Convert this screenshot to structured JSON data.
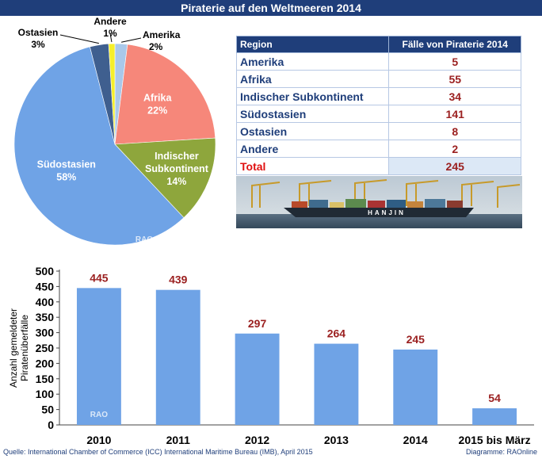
{
  "title": "Piraterie auf den Weltmeeren 2014",
  "pie": {
    "type": "pie",
    "slices": [
      {
        "label": "Amerika",
        "percent": "2%",
        "value": 2,
        "color": "#a9c8ea"
      },
      {
        "label": "Afrika",
        "percent": "22%",
        "value": 22,
        "color": "#f6877a"
      },
      {
        "label": "Indischer Subkontinent",
        "percent": "14%",
        "value": 14,
        "color": "#8ea63c"
      },
      {
        "label": "Südostasien",
        "percent": "58%",
        "value": 58,
        "color": "#6fa3e6"
      },
      {
        "label": "Ostasien",
        "percent": "3%",
        "value": 3,
        "color": "#3f5f8f"
      },
      {
        "label": "Andere",
        "percent": "1%",
        "value": 1,
        "color": "#f5ef2a"
      }
    ],
    "watermark": "RAO"
  },
  "table": {
    "header": {
      "region": "Region",
      "cases": "Fälle von Piraterie 2014"
    },
    "rows": [
      {
        "region": "Amerika",
        "cases": "5"
      },
      {
        "region": "Afrika",
        "cases": "55"
      },
      {
        "region": "Indischer Subkontinent",
        "cases": "34"
      },
      {
        "region": "Südostasien",
        "cases": "141"
      },
      {
        "region": "Ostasien",
        "cases": "8"
      },
      {
        "region": "Andere",
        "cases": "2"
      }
    ],
    "total": {
      "region": "Total",
      "cases": "245"
    }
  },
  "ship_text": "HANJIN",
  "chart_data": {
    "type": "bar",
    "categories": [
      "2010",
      "2011",
      "2012",
      "2013",
      "2014",
      "2015 bis März"
    ],
    "values": [
      445,
      439,
      297,
      264,
      245,
      54
    ],
    "ylabel": "Anzahl gemeldeter Piratenüberfälle",
    "ylim": [
      0,
      500
    ],
    "yticks": [
      0,
      50,
      100,
      150,
      200,
      250,
      300,
      350,
      400,
      450,
      500
    ],
    "bar_color": "#6fa3e6",
    "label_color": "#9b2020",
    "watermark": "RAO"
  },
  "source": "Quelle: International Chamber of Commerce (ICC) International Maritime Bureau (IMB), April 2015",
  "credit": "Diagramme: RAOnline"
}
